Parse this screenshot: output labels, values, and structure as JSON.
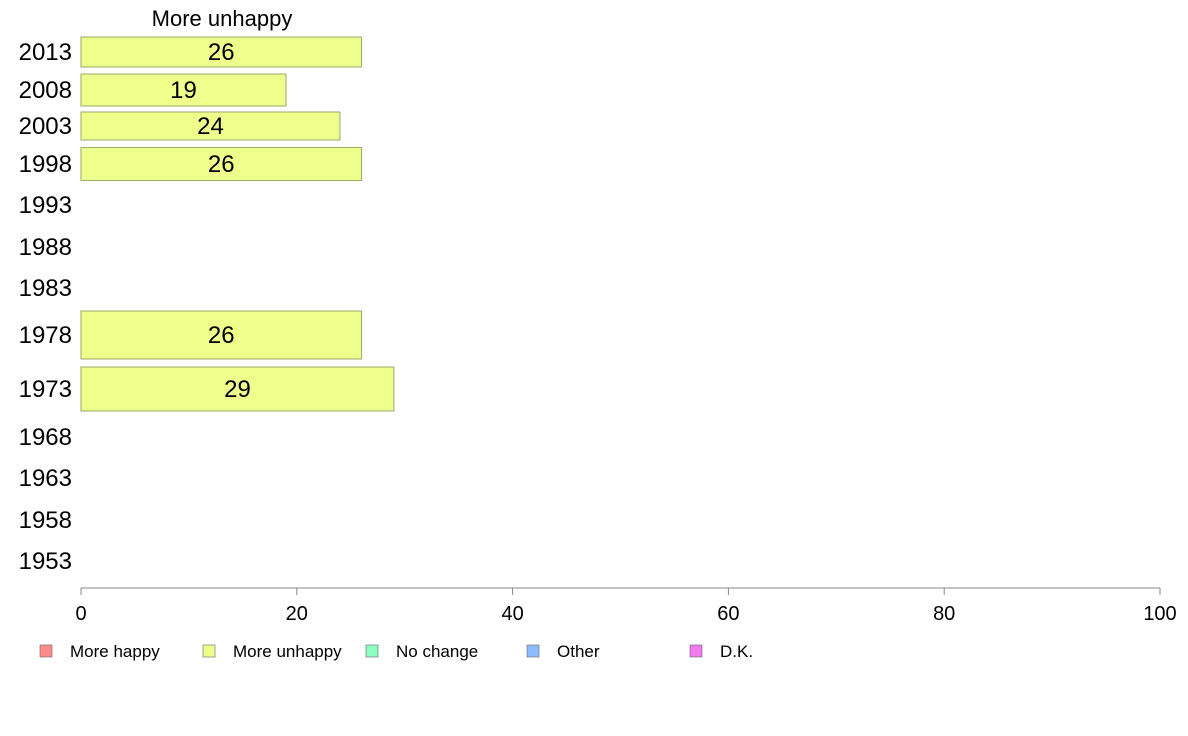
{
  "chart_data": {
    "type": "bar",
    "orientation": "horizontal",
    "panel_title": "More unhappy",
    "categories": [
      "2013",
      "2008",
      "2003",
      "1998",
      "1993",
      "1988",
      "1983",
      "1978",
      "1973",
      "1968",
      "1963",
      "1958",
      "1953"
    ],
    "series": [
      {
        "name": "More unhappy",
        "values": [
          26,
          19,
          24,
          26,
          null,
          null,
          null,
          26,
          29,
          null,
          null,
          null,
          null
        ]
      }
    ],
    "data_labels": [
      "26",
      "19",
      "24",
      "26",
      "",
      "",
      "",
      "26",
      "29",
      "",
      "",
      "",
      ""
    ],
    "xlim": [
      0,
      100
    ],
    "x_ticks": [
      "0",
      "20",
      "40",
      "60",
      "80",
      "100"
    ],
    "grid": false,
    "legend": {
      "placement": "bottom",
      "items": [
        {
          "label": "More happy",
          "color": "#ff8c8c"
        },
        {
          "label": "More unhappy",
          "color": "#eeff8c"
        },
        {
          "label": "No change",
          "color": "#8cffc0"
        },
        {
          "label": "Other",
          "color": "#8cbcff"
        },
        {
          "label": "D.K.",
          "color": "#f07cf0"
        }
      ]
    },
    "bar_color": "#eeff8c",
    "bar_stroke": "#9aa86a"
  }
}
